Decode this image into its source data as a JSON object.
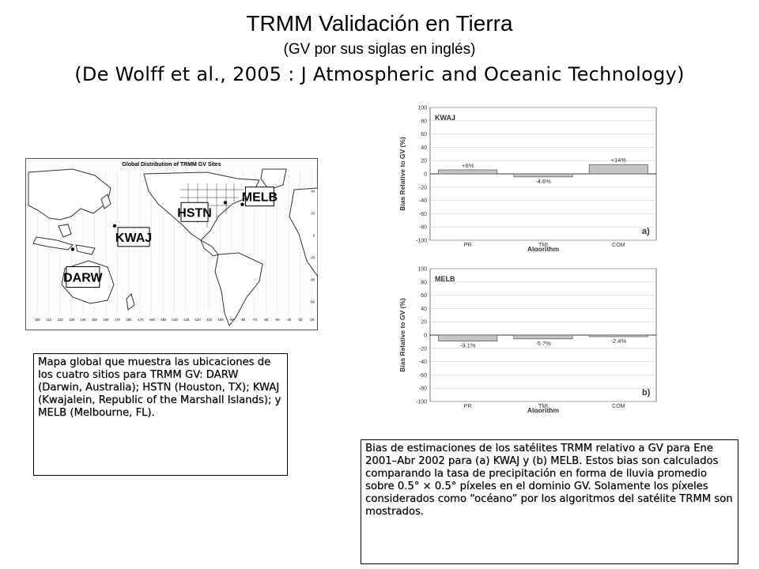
{
  "header": {
    "title": "TRMM Validación en Tierra",
    "subtitle": "(GV por sus siglas en inglés)",
    "citation": "(De Wolff et al., 2005 : J Atmospheric and Oceanic Technology)"
  },
  "map": {
    "title": "Global Distribution of TRMM GV Sites",
    "sites": [
      {
        "label": "KWAJ",
        "lon": 167.7,
        "lat": 8.7
      },
      {
        "label": "HSTN",
        "lon": -95.4,
        "lat": 29.8
      },
      {
        "label": "MELB",
        "lon": -80.6,
        "lat": 28.1
      },
      {
        "label": "DARW",
        "lon": 130.9,
        "lat": -12.5
      }
    ],
    "lon_ticks": [
      "100",
      "110",
      "120",
      "130",
      "140",
      "150",
      "160",
      "170",
      "180",
      "-170",
      "-160",
      "-150",
      "-140",
      "-130",
      "-120",
      "-110",
      "-100",
      "-90",
      "-80",
      "-70",
      "-60",
      "-50",
      "-40",
      "-30",
      "-20"
    ],
    "lat_ticks": [
      "40",
      "20",
      "0",
      "-20",
      "-40",
      "-60"
    ]
  },
  "map_caption": "Mapa global que muestra las ubicaciones de los cuatro sitios para TRMM GV: DARW (Darwin, Australia); HSTN (Houston, TX); KWAJ (Kwajalein, Republic of the Marshall Islands); y MELB (Melbourne, FL).",
  "chart_caption": "Bias de estimaciones de los satélites TRMM relativo a GV para Ene 2001–Abr 2002 para (a) KWAJ y (b) MELB. Estos bias son calculados comparando la tasa de precipitación en forma de lluvia promedio sobre 0.5° × 0.5° píxeles en el dominio GV. Solamente los píxeles considerados como “océano” por los algoritmos del satélite TRMM son mostrados.",
  "chart_data": [
    {
      "type": "bar",
      "title": "KWAJ",
      "panel": "a)",
      "categories": [
        "PR",
        "TMI",
        "COM"
      ],
      "values": [
        6,
        -4.6,
        14
      ],
      "data_labels": [
        "+6%",
        "-4.6%",
        "+14%"
      ],
      "xlabel": "Algorithm",
      "ylabel": "Bias Relative to GV (%)",
      "ylim": [
        -100,
        100
      ],
      "yticks": [
        100,
        80,
        60,
        40,
        20,
        0,
        -20,
        -40,
        -60,
        -80,
        -100
      ],
      "grid": true,
      "bar_color": "#c4c4c4"
    },
    {
      "type": "bar",
      "title": "MELB",
      "panel": "b)",
      "categories": [
        "PR",
        "TMI",
        "COM"
      ],
      "values": [
        -9.1,
        -5.7,
        -2.4
      ],
      "data_labels": [
        "-9.1%",
        "-5.7%",
        "-2.4%"
      ],
      "xlabel": "Algorithm",
      "ylabel": "Bias Relative to GV (%)",
      "ylim": [
        -100,
        100
      ],
      "yticks": [
        100,
        80,
        60,
        40,
        20,
        0,
        -20,
        -40,
        -60,
        -80,
        -100
      ],
      "grid": true,
      "bar_color": "#c4c4c4"
    }
  ]
}
